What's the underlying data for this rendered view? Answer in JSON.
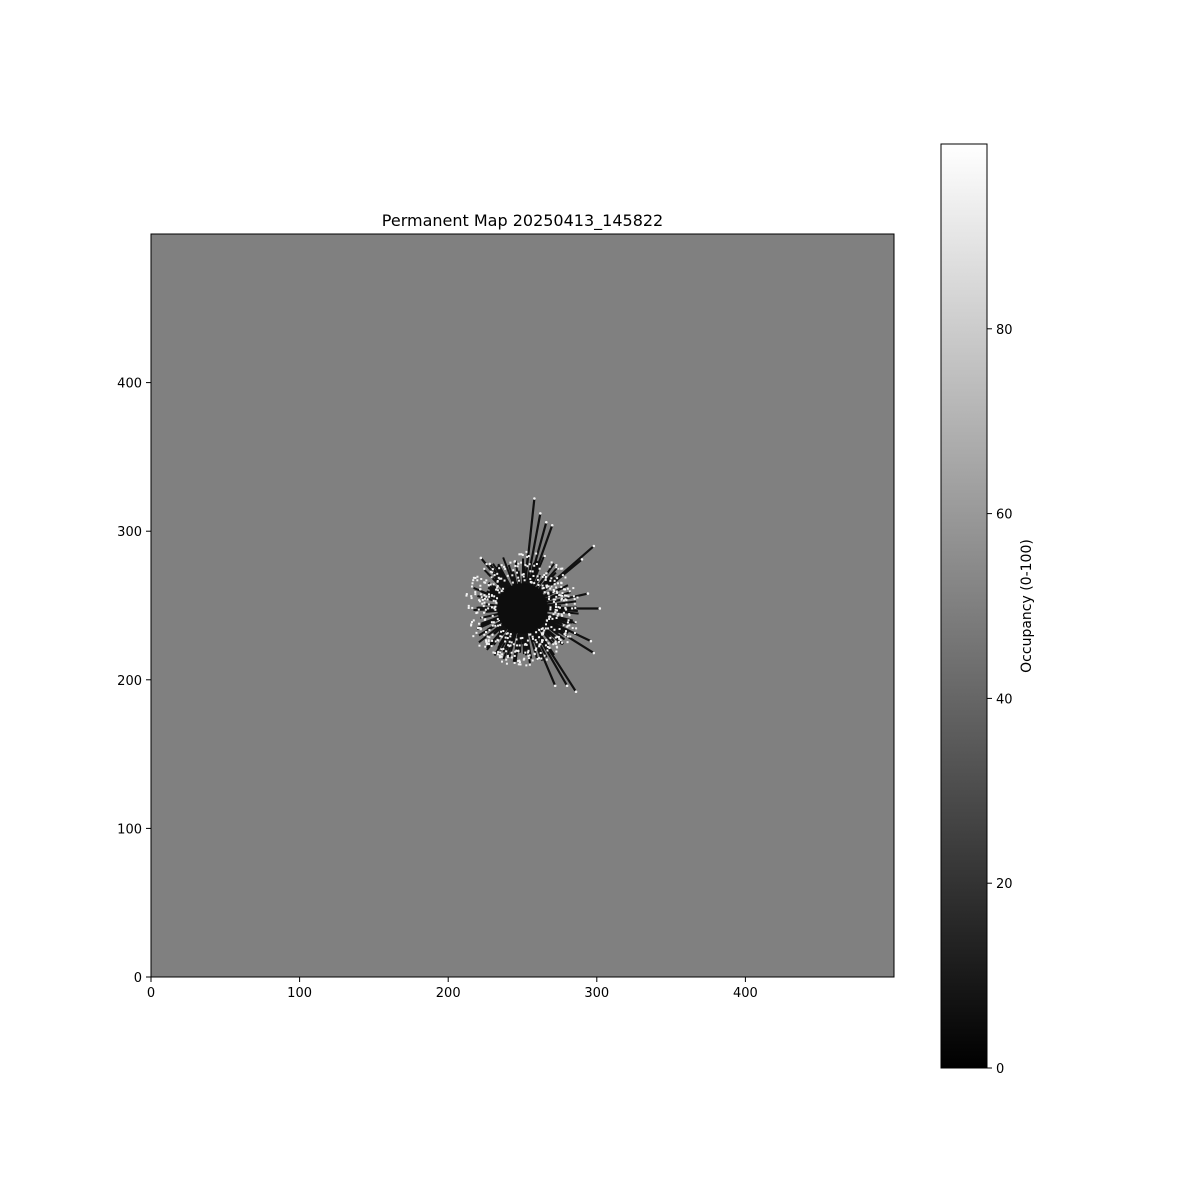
{
  "chart_data": {
    "type": "heatmap",
    "title": "Permanent Map 20250413_145822",
    "xlabel": "",
    "ylabel": "",
    "xlim": [
      0,
      500
    ],
    "ylim": [
      0,
      500
    ],
    "x_ticks": [
      0,
      100,
      200,
      300,
      400
    ],
    "y_ticks": [
      0,
      100,
      200,
      300,
      400
    ],
    "background_value": 50,
    "explored_region": {
      "center": [
        250,
        248
      ],
      "free_value": 5,
      "free_core_radius": 17,
      "scatter_radius_range": [
        22,
        38
      ],
      "occupied_value": 95,
      "long_rays_to": [
        [
          258,
          322
        ],
        [
          262,
          312
        ],
        [
          266,
          306
        ],
        [
          270,
          304
        ],
        [
          298,
          290
        ],
        [
          290,
          281
        ],
        [
          302,
          248
        ],
        [
          294,
          258
        ],
        [
          296,
          226
        ],
        [
          298,
          218
        ],
        [
          286,
          192
        ],
        [
          280,
          196
        ],
        [
          272,
          196
        ],
        [
          234,
          240
        ],
        [
          222,
          282
        ],
        [
          228,
          278
        ]
      ]
    },
    "colorbar": {
      "label": "Occupancy (0-100)",
      "range": [
        0,
        100
      ],
      "ticks": [
        0,
        20,
        40,
        60,
        80
      ],
      "cmap": "gray"
    },
    "colors": {
      "background": "#808080",
      "free": "#0d0d0d",
      "occupied": "#f2f2f2",
      "ray": "#111111"
    }
  }
}
